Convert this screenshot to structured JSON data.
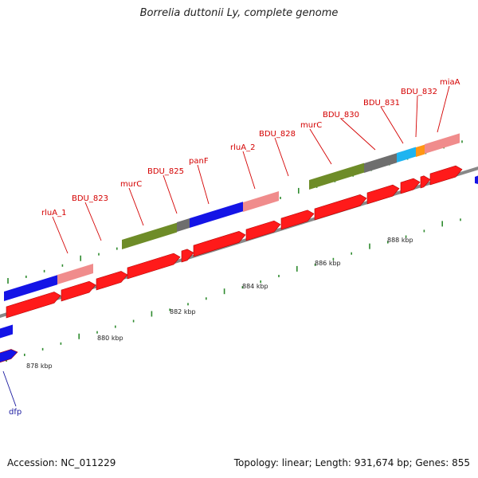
{
  "title": "Borrelia duttonii Ly, complete genome",
  "footer": {
    "accession": "Accession: NC_011229",
    "summary": "Topology: linear; Length: 931,674 bp; Genes: 855"
  },
  "colors": {
    "gene_forward": "#ff1a1a",
    "label_forward": "#d40000",
    "label_reverse": "#1a1aa0",
    "blue_feature": "#1414e6",
    "pink_feature": "#f08c8c",
    "olive_feature": "#6e8c28",
    "gray_feature": "#6e6e6e",
    "cyan_feature": "#1eb4f0",
    "orange_feature": "#ff9614",
    "axis": "#888888",
    "tick": "#2e8b2e"
  },
  "scale_labels": [
    "878 kbp",
    "880 kbp",
    "882 kbp",
    "884 kbp",
    "886 kbp",
    "888 kbp"
  ],
  "gene_labels": [
    {
      "text": "rluA_1",
      "strand": "forward"
    },
    {
      "text": "BDU_823",
      "strand": "forward"
    },
    {
      "text": "murC",
      "strand": "forward"
    },
    {
      "text": "BDU_825",
      "strand": "forward"
    },
    {
      "text": "panF",
      "strand": "forward"
    },
    {
      "text": "rluA_2",
      "strand": "forward"
    },
    {
      "text": "BDU_828",
      "strand": "forward"
    },
    {
      "text": "murC",
      "strand": "forward"
    },
    {
      "text": "BDU_830",
      "strand": "forward"
    },
    {
      "text": "BDU_831",
      "strand": "forward"
    },
    {
      "text": "BDU_832",
      "strand": "forward"
    },
    {
      "text": "miaA",
      "strand": "forward"
    },
    {
      "text": "dfp",
      "strand": "reverse"
    }
  ]
}
